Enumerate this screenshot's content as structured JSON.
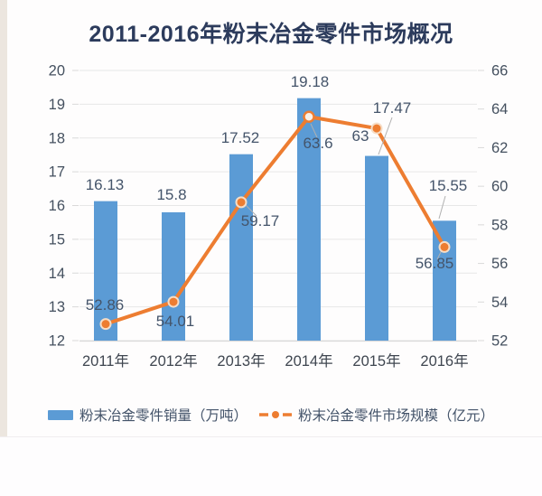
{
  "chart_data": {
    "type": "bar",
    "subtype": "combo-bar-line-dual-axis",
    "title": "2011-2016年粉末冶金零件市场概况",
    "categories": [
      "2011年",
      "2012年",
      "2013年",
      "2014年",
      "2015年",
      "2016年"
    ],
    "series": [
      {
        "name": "粉末冶金零件销量（万吨）",
        "type": "bar",
        "axis": "left",
        "color": "#5b9bd5",
        "values": [
          16.13,
          15.8,
          17.52,
          19.18,
          17.47,
          15.55
        ]
      },
      {
        "name": "粉末冶金零件市场规模（亿元）",
        "type": "line",
        "axis": "right",
        "color": "#ed7d31",
        "values": [
          52.86,
          54.01,
          59.17,
          63.6,
          63,
          56.85
        ]
      }
    ],
    "left_axis": {
      "min": 12,
      "max": 20,
      "step": 1,
      "ticks": [
        "12",
        "13",
        "14",
        "15",
        "16",
        "17",
        "18",
        "19",
        "20"
      ]
    },
    "right_axis": {
      "min": 52,
      "max": 66,
      "step": 2,
      "ticks": [
        "52",
        "54",
        "56",
        "58",
        "60",
        "62",
        "64",
        "66"
      ]
    },
    "grid": true,
    "legend_position": "bottom",
    "colors": {
      "title": "#2c3b5c",
      "data_label": "#44546a",
      "axis_tick_label": "#44505f",
      "x_axis_label": "#3f4650",
      "gridline": "#e7e7e7",
      "axis_line": "#d9d9d9",
      "leader_line": "#b0b0b0"
    }
  }
}
